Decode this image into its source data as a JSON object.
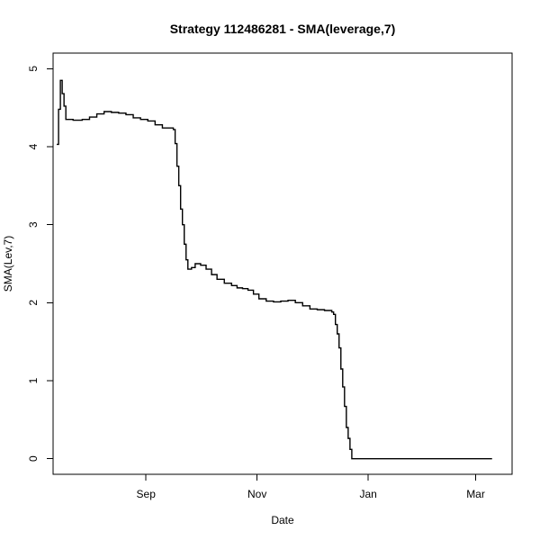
{
  "chart_data": {
    "type": "line",
    "title": "Strategy 112486281 - SMA(leverage,7)",
    "xlabel": "Date",
    "ylabel": "SMA(Lev,7)",
    "step": true,
    "xlim": [
      "2020-07-12",
      "2021-03-21"
    ],
    "ylim": [
      -0.2,
      5.2
    ],
    "x_ticks": [
      {
        "date": "2020-09-01",
        "label": "Sep"
      },
      {
        "date": "2020-11-01",
        "label": "Nov"
      },
      {
        "date": "2021-01-01",
        "label": "Jan"
      },
      {
        "date": "2021-03-01",
        "label": "Mar"
      }
    ],
    "y_ticks": [
      0,
      1,
      2,
      3,
      4,
      5
    ],
    "grid": false,
    "legend": "none",
    "series": [
      {
        "color": "#000000",
        "points": [
          [
            "2020-07-14",
            4.03
          ],
          [
            "2020-07-15",
            4.48
          ],
          [
            "2020-07-16",
            4.85
          ],
          [
            "2020-07-17",
            4.68
          ],
          [
            "2020-07-18",
            4.52
          ],
          [
            "2020-07-19",
            4.35
          ],
          [
            "2020-07-23",
            4.34
          ],
          [
            "2020-07-28",
            4.35
          ],
          [
            "2020-08-01",
            4.38
          ],
          [
            "2020-08-05",
            4.42
          ],
          [
            "2020-08-09",
            4.45
          ],
          [
            "2020-08-13",
            4.44
          ],
          [
            "2020-08-17",
            4.43
          ],
          [
            "2020-08-21",
            4.41
          ],
          [
            "2020-08-25",
            4.37
          ],
          [
            "2020-08-29",
            4.35
          ],
          [
            "2020-09-02",
            4.33
          ],
          [
            "2020-09-06",
            4.28
          ],
          [
            "2020-09-10",
            4.24
          ],
          [
            "2020-09-14",
            4.24
          ],
          [
            "2020-09-16",
            4.22
          ],
          [
            "2020-09-17",
            4.04
          ],
          [
            "2020-09-18",
            3.75
          ],
          [
            "2020-09-19",
            3.5
          ],
          [
            "2020-09-20",
            3.2
          ],
          [
            "2020-09-21",
            3.0
          ],
          [
            "2020-09-22",
            2.75
          ],
          [
            "2020-09-23",
            2.55
          ],
          [
            "2020-09-24",
            2.43
          ],
          [
            "2020-09-26",
            2.45
          ],
          [
            "2020-09-28",
            2.5
          ],
          [
            "2020-10-01",
            2.48
          ],
          [
            "2020-10-04",
            2.43
          ],
          [
            "2020-10-07",
            2.36
          ],
          [
            "2020-10-10",
            2.3
          ],
          [
            "2020-10-14",
            2.25
          ],
          [
            "2020-10-18",
            2.22
          ],
          [
            "2020-10-21",
            2.19
          ],
          [
            "2020-10-24",
            2.18
          ],
          [
            "2020-10-27",
            2.16
          ],
          [
            "2020-10-30",
            2.11
          ],
          [
            "2020-11-02",
            2.05
          ],
          [
            "2020-11-06",
            2.02
          ],
          [
            "2020-11-10",
            2.01
          ],
          [
            "2020-11-14",
            2.02
          ],
          [
            "2020-11-18",
            2.03
          ],
          [
            "2020-11-22",
            2.0
          ],
          [
            "2020-11-26",
            1.96
          ],
          [
            "2020-11-30",
            1.92
          ],
          [
            "2020-12-04",
            1.91
          ],
          [
            "2020-12-08",
            1.9
          ],
          [
            "2020-12-12",
            1.88
          ],
          [
            "2020-12-13",
            1.85
          ],
          [
            "2020-12-14",
            1.72
          ],
          [
            "2020-12-15",
            1.6
          ],
          [
            "2020-12-16",
            1.42
          ],
          [
            "2020-12-17",
            1.15
          ],
          [
            "2020-12-18",
            0.92
          ],
          [
            "2020-12-19",
            0.67
          ],
          [
            "2020-12-20",
            0.4
          ],
          [
            "2020-12-21",
            0.26
          ],
          [
            "2020-12-22",
            0.12
          ],
          [
            "2020-12-23",
            0.0
          ],
          [
            "2021-03-10",
            0.0
          ]
        ]
      }
    ]
  }
}
